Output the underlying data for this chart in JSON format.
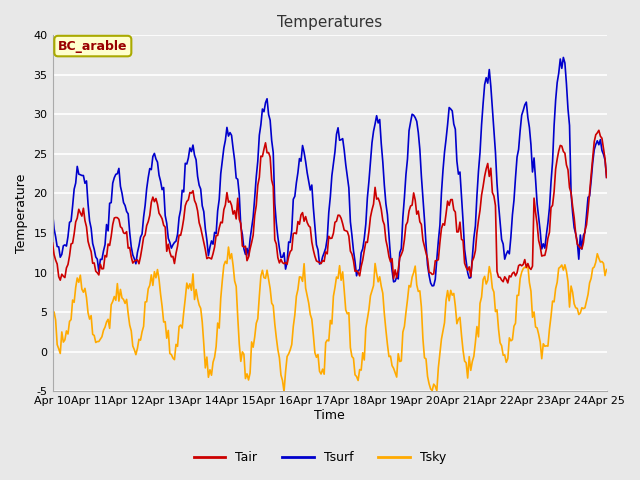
{
  "title": "Temperatures",
  "xlabel": "Time",
  "ylabel": "Temperature",
  "ylim": [
    -5,
    40
  ],
  "yticks": [
    -5,
    0,
    5,
    10,
    15,
    20,
    25,
    30,
    35,
    40
  ],
  "xtick_labels": [
    "Apr 10",
    "Apr 11",
    "Apr 12",
    "Apr 13",
    "Apr 14",
    "Apr 15",
    "Apr 16",
    "Apr 17",
    "Apr 18",
    "Apr 19",
    "Apr 20",
    "Apr 21",
    "Apr 22",
    "Apr 23",
    "Apr 24",
    "Apr 25"
  ],
  "legend_entries": [
    "Tair",
    "Tsurf",
    "Tsky"
  ],
  "Tair_color": "#cc0000",
  "Tsurf_color": "#0000cc",
  "Tsky_color": "#ffaa00",
  "legend_colors": [
    "#cc0000",
    "#0000cc",
    "#ffaa00"
  ],
  "annotation_text": "BC_arable",
  "annotation_color": "#990000",
  "annotation_bgcolor": "#ffffcc",
  "annotation_edgecolor": "#aaaa00",
  "bg_color": "#e8e8e8",
  "plot_bg_color": "#e8e8e8",
  "grid_color": "#ffffff",
  "linewidth": 1.2,
  "Tair_max": [
    18,
    17,
    19,
    20,
    19,
    26,
    17,
    17,
    19,
    19,
    19,
    23,
    11,
    26,
    28
  ],
  "Tair_min": [
    9,
    10,
    11,
    12,
    12,
    12,
    11,
    11,
    10,
    10,
    10,
    10,
    9,
    12,
    13
  ],
  "Tsurf_max": [
    23,
    22,
    25,
    26,
    28,
    32,
    25,
    28,
    29,
    30,
    31,
    35,
    31,
    37,
    27
  ],
  "Tsurf_min": [
    12,
    11,
    12,
    13,
    13,
    12,
    11,
    11,
    10,
    9,
    8,
    10,
    12,
    13,
    13
  ],
  "Tsky_max": [
    9,
    8,
    10,
    9,
    13,
    10,
    10,
    10,
    10,
    10,
    8,
    10,
    10,
    11,
    12
  ],
  "Tsky_min": [
    1,
    1,
    0,
    0,
    -3,
    -3,
    -3,
    -3,
    -3,
    -3,
    -5,
    -2,
    -1,
    0,
    4
  ]
}
